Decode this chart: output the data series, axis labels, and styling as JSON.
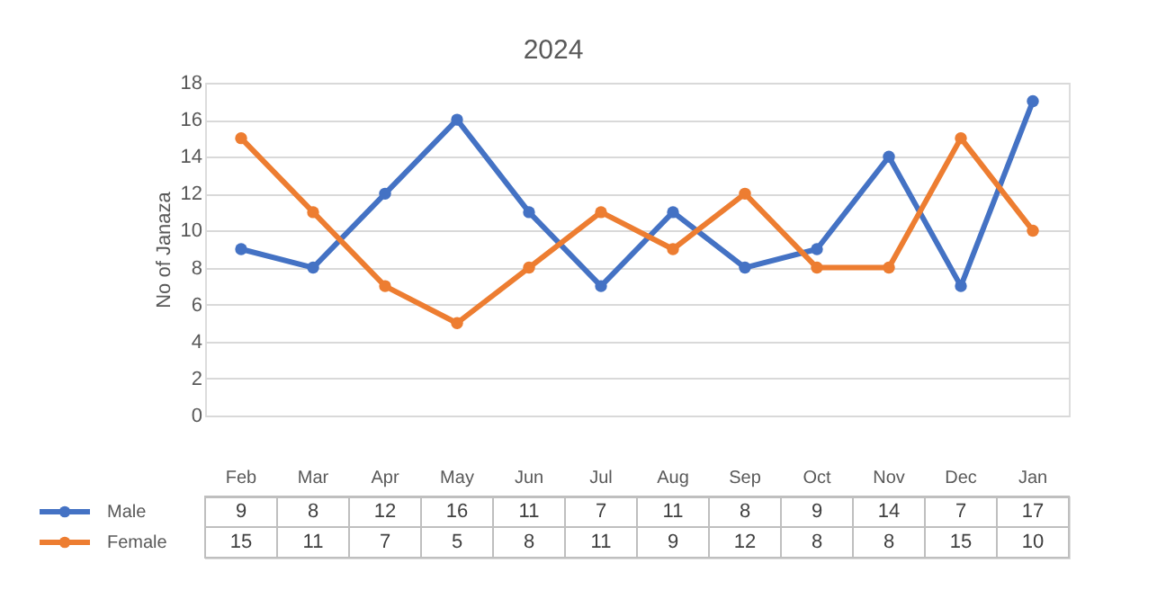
{
  "chart_data": {
    "type": "line",
    "title": "2024",
    "ylabel": "No of Janaza",
    "categories": [
      "Feb",
      "Mar",
      "Apr",
      "May",
      "Jun",
      "Jul",
      "Aug",
      "Sep",
      "Oct",
      "Nov",
      "Dec",
      "Jan"
    ],
    "series": [
      {
        "name": "Male",
        "color": "#4472c4",
        "values": [
          9,
          8,
          12,
          16,
          11,
          7,
          11,
          8,
          9,
          14,
          7,
          17
        ]
      },
      {
        "name": "Female",
        "color": "#ed7d31",
        "values": [
          15,
          11,
          7,
          5,
          8,
          11,
          9,
          12,
          8,
          8,
          15,
          10
        ]
      }
    ],
    "ylim": [
      0,
      18
    ],
    "yticks": [
      0,
      2,
      4,
      6,
      8,
      10,
      12,
      14,
      16,
      18
    ],
    "grid": "y",
    "marker": "circle",
    "line_style": "solid",
    "legend": "bottom",
    "data_labels": true
  }
}
